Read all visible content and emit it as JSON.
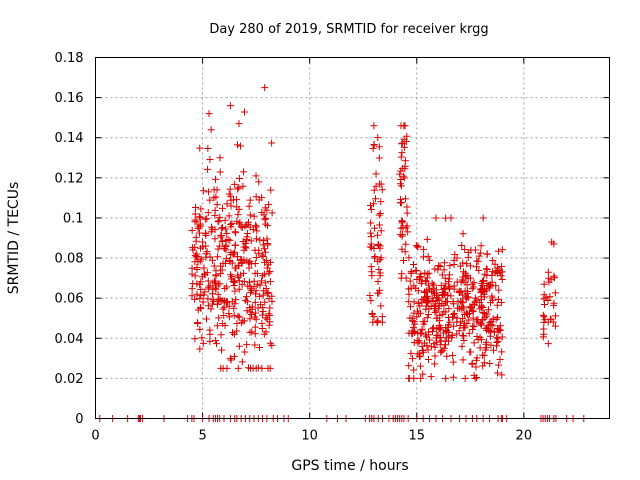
{
  "chart_data": {
    "type": "scatter",
    "title": "Day 280 of 2019, SRMTID for receiver krgg",
    "xlabel": "GPS time / hours",
    "ylabel": "SRMTID / TECUs",
    "xlim": [
      0,
      24
    ],
    "ylim": [
      0,
      0.18
    ],
    "xticks": [
      0,
      5,
      10,
      15,
      20
    ],
    "xtick_labels": [
      "0",
      "5",
      "10",
      "15",
      "20"
    ],
    "yticks": [
      0,
      0.02,
      0.04,
      0.06,
      0.08,
      0.1,
      0.12,
      0.14,
      0.16,
      0.18
    ],
    "ytick_labels": [
      "0",
      "0.02",
      "0.04",
      "0.06",
      "0.08",
      "0.1",
      "0.12",
      "0.14",
      "0.16",
      "0.18"
    ],
    "grid": true,
    "series": [
      {
        "name": "SRMTID",
        "marker": "plus",
        "color": "#dd0000",
        "clusters": [
          {
            "x": [
              4.5,
              8.3
            ],
            "y_center": 0.075,
            "y_spread": 0.025,
            "y_min": 0.025,
            "y_max": 0.165,
            "count": 420
          },
          {
            "x": [
              12.8,
              13.4
            ],
            "y_center": 0.08,
            "y_spread": 0.025,
            "y_min": 0.048,
            "y_max": 0.146,
            "count": 60
          },
          {
            "x": [
              14.2,
              14.6
            ],
            "y_center": 0.11,
            "y_spread": 0.02,
            "y_min": 0.07,
            "y_max": 0.146,
            "count": 45
          },
          {
            "x": [
              14.6,
              19.0
            ],
            "y_center": 0.055,
            "y_spread": 0.015,
            "y_min": 0.02,
            "y_max": 0.1,
            "count": 480
          },
          {
            "x": [
              20.9,
              21.5
            ],
            "y_center": 0.06,
            "y_spread": 0.015,
            "y_min": 0.034,
            "y_max": 0.088,
            "count": 30
          }
        ],
        "points": [
          [
            7.9,
            0.165
          ],
          [
            6.3,
            0.156
          ],
          [
            5.3,
            0.152
          ],
          [
            6.7,
            0.147
          ],
          [
            13.0,
            0.146
          ],
          [
            14.4,
            0.146
          ],
          [
            5.4,
            0.144
          ],
          [
            14.3,
            0.137
          ],
          [
            13.1,
            0.122
          ],
          [
            21.3,
            0.088
          ],
          [
            21.4,
            0.087
          ],
          [
            15.9,
            0.1
          ],
          [
            18.1,
            0.1
          ]
        ],
        "baseline_x": [
          0.2,
          0.8,
          1.5,
          2.0,
          2.05,
          2.1,
          2.2,
          3.2,
          4.3,
          4.5,
          4.6,
          5.0,
          5.3,
          5.5,
          5.6,
          5.7,
          5.8,
          6.0,
          6.3,
          6.5,
          6.6,
          6.8,
          7.0,
          7.2,
          7.4,
          7.6,
          7.8,
          8.0,
          8.3,
          8.5,
          8.8,
          9.0,
          10.8,
          11.3,
          11.7,
          12.6,
          12.8,
          12.9,
          13.0,
          13.2,
          13.4,
          13.7,
          13.9,
          14.0,
          14.1,
          14.2,
          14.3,
          14.4,
          14.6,
          15.0,
          15.3,
          15.6,
          15.9,
          16.2,
          16.6,
          17.0,
          17.3,
          17.6,
          17.8,
          18.1,
          18.4,
          18.8,
          18.95,
          19.0,
          19.2,
          20.8,
          20.9,
          21.0,
          21.1,
          21.2,
          21.4,
          21.5,
          22.0,
          22.3,
          22.8
        ]
      }
    ]
  }
}
